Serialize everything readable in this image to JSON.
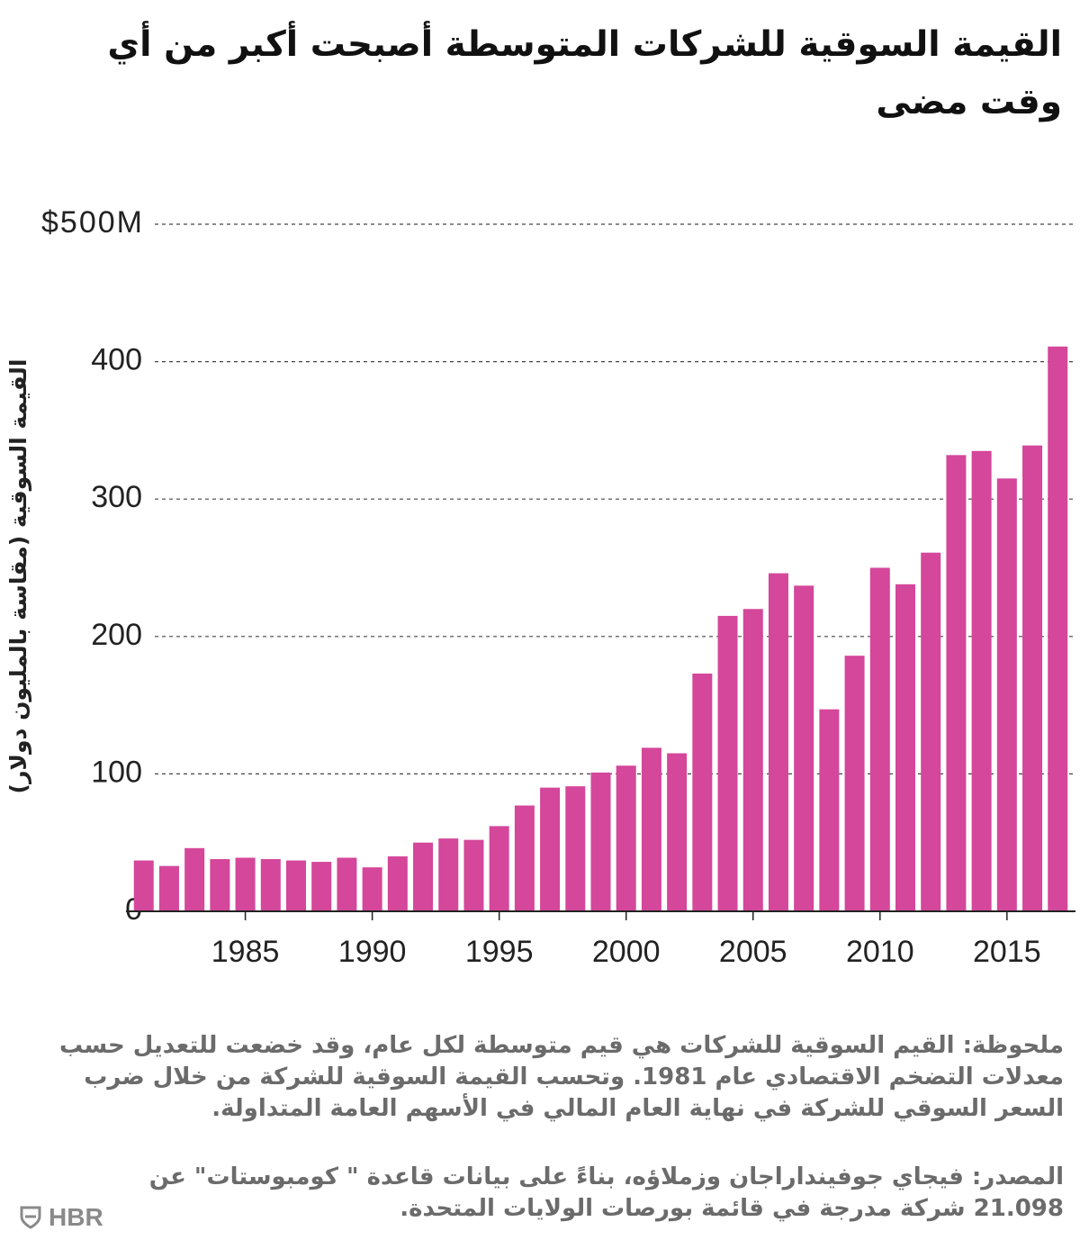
{
  "chart_data": {
    "type": "bar",
    "title": "القيمة السوقية للشركات المتوسطة أصبحت أكبر من أي وقت مضى",
    "y_label": "القيمة السوقية (مقاسة بالمليون دولار)",
    "x": [
      1981,
      1982,
      1983,
      1984,
      1985,
      1986,
      1987,
      1988,
      1989,
      1990,
      1991,
      1992,
      1993,
      1994,
      1995,
      1996,
      1997,
      1998,
      1999,
      2000,
      2001,
      2002,
      2003,
      2004,
      2005,
      2006,
      2007,
      2008,
      2009,
      2010,
      2011,
      2012,
      2013,
      2014,
      2015,
      2016,
      2017
    ],
    "values": [
      37,
      33,
      46,
      38,
      39,
      38,
      37,
      36,
      39,
      32,
      40,
      50,
      53,
      52,
      62,
      77,
      90,
      91,
      101,
      106,
      119,
      115,
      173,
      215,
      220,
      246,
      237,
      147,
      186,
      250,
      238,
      261,
      332,
      335,
      315,
      339,
      411
    ],
    "color": "#d4479a",
    "xlim": [
      1980.3,
      2017.7
    ],
    "xticks": [
      1985,
      1990,
      1995,
      2000,
      2005,
      2010,
      2015
    ],
    "ylim": [
      0,
      500
    ],
    "yticks": [
      0,
      100,
      200,
      300,
      400,
      {
        "value": 500,
        "label": "$500M"
      }
    ],
    "grid": true
  },
  "note": "ملحوظة: القيم السوقية للشركات هي قيم متوسطة لكل عام، وقد خضعت للتعديل حسب معدلات التضخم الاقتصادي عام 1981. وتحسب القيمة السوقية للشركة من خلال ضرب السعر السوقي للشركة في نهاية العام المالي في الأسهم العامة المتداولة.",
  "source": "المصدر: فيجاي جوفينداراجان وزملاؤه، بناءً على بيانات قاعدة \" كومبوستات\" عن 21.098 شركة مدرجة في قائمة بورصات الولايات المتحدة.",
  "logo": "HBR"
}
